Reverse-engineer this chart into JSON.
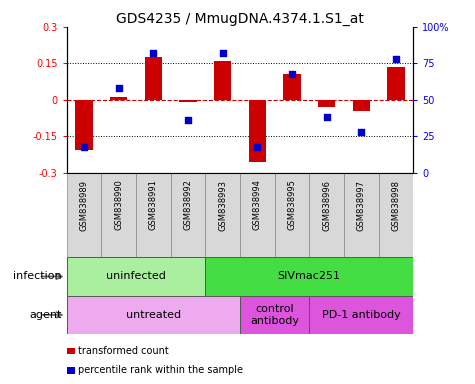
{
  "title": "GDS4235 / MmugDNA.4374.1.S1_at",
  "samples": [
    "GSM838989",
    "GSM838990",
    "GSM838991",
    "GSM838992",
    "GSM838993",
    "GSM838994",
    "GSM838995",
    "GSM838996",
    "GSM838997",
    "GSM838998"
  ],
  "transformed_count": [
    -0.205,
    0.01,
    0.175,
    -0.01,
    0.16,
    -0.255,
    0.105,
    -0.03,
    -0.045,
    0.135
  ],
  "percentile_rank": [
    18,
    58,
    82,
    36,
    82,
    18,
    68,
    38,
    28,
    78
  ],
  "ylim_left": [
    -0.3,
    0.3
  ],
  "ylim_right": [
    0,
    100
  ],
  "yticks_left": [
    -0.3,
    -0.15,
    0.0,
    0.15,
    0.3
  ],
  "ytick_labels_left": [
    "-0.3",
    "-0.15",
    "0",
    "0.15",
    "0.3"
  ],
  "yticks_right": [
    0,
    25,
    50,
    75,
    100
  ],
  "ytick_labels_right": [
    "0",
    "25",
    "50",
    "75",
    "100%"
  ],
  "bar_color": "#cc0000",
  "dot_color": "#0000cc",
  "zero_line_color": "#cc0000",
  "grid_line_color": "#000000",
  "infection_groups": [
    {
      "label": "uninfected",
      "start": 0,
      "end": 4,
      "color": "#aaeea0"
    },
    {
      "label": "SIVmac251",
      "start": 4,
      "end": 10,
      "color": "#44dd44"
    }
  ],
  "agent_groups": [
    {
      "label": "untreated",
      "start": 0,
      "end": 5,
      "color": "#eeaaee"
    },
    {
      "label": "control\nantibody",
      "start": 5,
      "end": 7,
      "color": "#dd55dd"
    },
    {
      "label": "PD-1 antibody",
      "start": 7,
      "end": 10,
      "color": "#dd55dd"
    }
  ],
  "legend_items": [
    {
      "label": "transformed count",
      "color": "#cc0000"
    },
    {
      "label": "percentile rank within the sample",
      "color": "#0000cc"
    }
  ],
  "row_label_infection": "infection",
  "row_label_agent": "agent",
  "title_fontsize": 10,
  "tick_fontsize": 7,
  "label_fontsize": 8,
  "sample_fontsize": 6,
  "bar_width": 0.5
}
